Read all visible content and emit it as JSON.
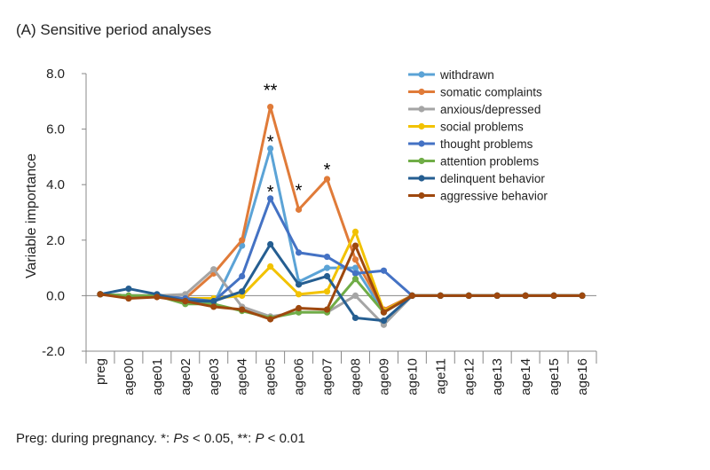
{
  "chart_data": {
    "type": "line",
    "title": "(A) Sensitive period analyses",
    "xlabel": "",
    "ylabel": "Variable importance",
    "ylim": [
      -2.0,
      8.0
    ],
    "yticks": [
      "-2.0",
      "0.0",
      "2.0",
      "4.0",
      "6.0",
      "8.0"
    ],
    "categories": [
      "preg",
      "age00",
      "age01",
      "age02",
      "age03",
      "age04",
      "age05",
      "age06",
      "age07",
      "age08",
      "age09",
      "age10",
      "age11",
      "age12",
      "age13",
      "age14",
      "age15",
      "age16"
    ],
    "legend_position": "top-right",
    "grid": false,
    "series": [
      {
        "name": "withdrawn",
        "color": "#5ba3d6",
        "values": [
          0.05,
          0.0,
          0.0,
          -0.2,
          -0.3,
          1.8,
          5.3,
          0.5,
          1.0,
          1.0,
          -0.6,
          0,
          0,
          0,
          0,
          0,
          0,
          0
        ]
      },
      {
        "name": "somatic complaints",
        "color": "#e07b39",
        "values": [
          0.05,
          0.0,
          0.0,
          -0.1,
          0.8,
          2.0,
          6.8,
          3.1,
          4.2,
          1.3,
          -0.5,
          0,
          0,
          0,
          0,
          0,
          0,
          0
        ]
      },
      {
        "name": "anxious/depressed",
        "color": "#a5a5a5",
        "values": [
          0.05,
          0.0,
          0.0,
          0.05,
          0.95,
          -0.4,
          -0.75,
          -0.6,
          -0.6,
          0.0,
          -1.05,
          0,
          0,
          0,
          0,
          0,
          0,
          0
        ]
      },
      {
        "name": "social problems",
        "color": "#f2c200",
        "values": [
          0.05,
          0.0,
          0.0,
          -0.1,
          -0.1,
          0.0,
          1.05,
          0.05,
          0.15,
          2.3,
          -0.55,
          0,
          0,
          0,
          0,
          0,
          0,
          0
        ]
      },
      {
        "name": "thought problems",
        "color": "#4472c4",
        "values": [
          0.05,
          0.0,
          0.0,
          -0.1,
          -0.2,
          0.7,
          3.5,
          1.55,
          1.4,
          0.8,
          0.9,
          0,
          0,
          0,
          0,
          0,
          0,
          0
        ]
      },
      {
        "name": "attention problems",
        "color": "#70ad47",
        "values": [
          0.05,
          0.0,
          0.0,
          -0.3,
          -0.3,
          -0.55,
          -0.8,
          -0.6,
          -0.6,
          0.6,
          -0.6,
          0,
          0,
          0,
          0,
          0,
          0,
          0
        ]
      },
      {
        "name": "delinquent behavior",
        "color": "#255e91",
        "values": [
          0.05,
          0.25,
          0.05,
          -0.2,
          -0.2,
          0.15,
          1.85,
          0.4,
          0.7,
          -0.8,
          -0.9,
          0,
          0,
          0,
          0,
          0,
          0,
          0
        ]
      },
      {
        "name": "aggressive behavior",
        "color": "#9e480e",
        "values": [
          0.05,
          -0.1,
          -0.05,
          -0.2,
          -0.4,
          -0.5,
          -0.85,
          -0.45,
          -0.5,
          1.8,
          -0.6,
          0,
          0,
          0,
          0,
          0,
          0,
          0
        ]
      }
    ],
    "annotations": [
      {
        "text": "**",
        "category": "age05",
        "y": 7.5
      },
      {
        "text": "*",
        "category": "age05",
        "y": 5.65
      },
      {
        "text": "*",
        "category": "age05",
        "y": 3.85
      },
      {
        "text": "*",
        "category": "age06",
        "y": 3.9
      },
      {
        "text": "*",
        "category": "age07",
        "y": 4.65
      }
    ],
    "footnote": {
      "part1": "Preg: during pregnancy. *: ",
      "part2": "Ps",
      "part3": " < 0.05, **: ",
      "part4": "P",
      "part5": " < 0.01"
    }
  }
}
